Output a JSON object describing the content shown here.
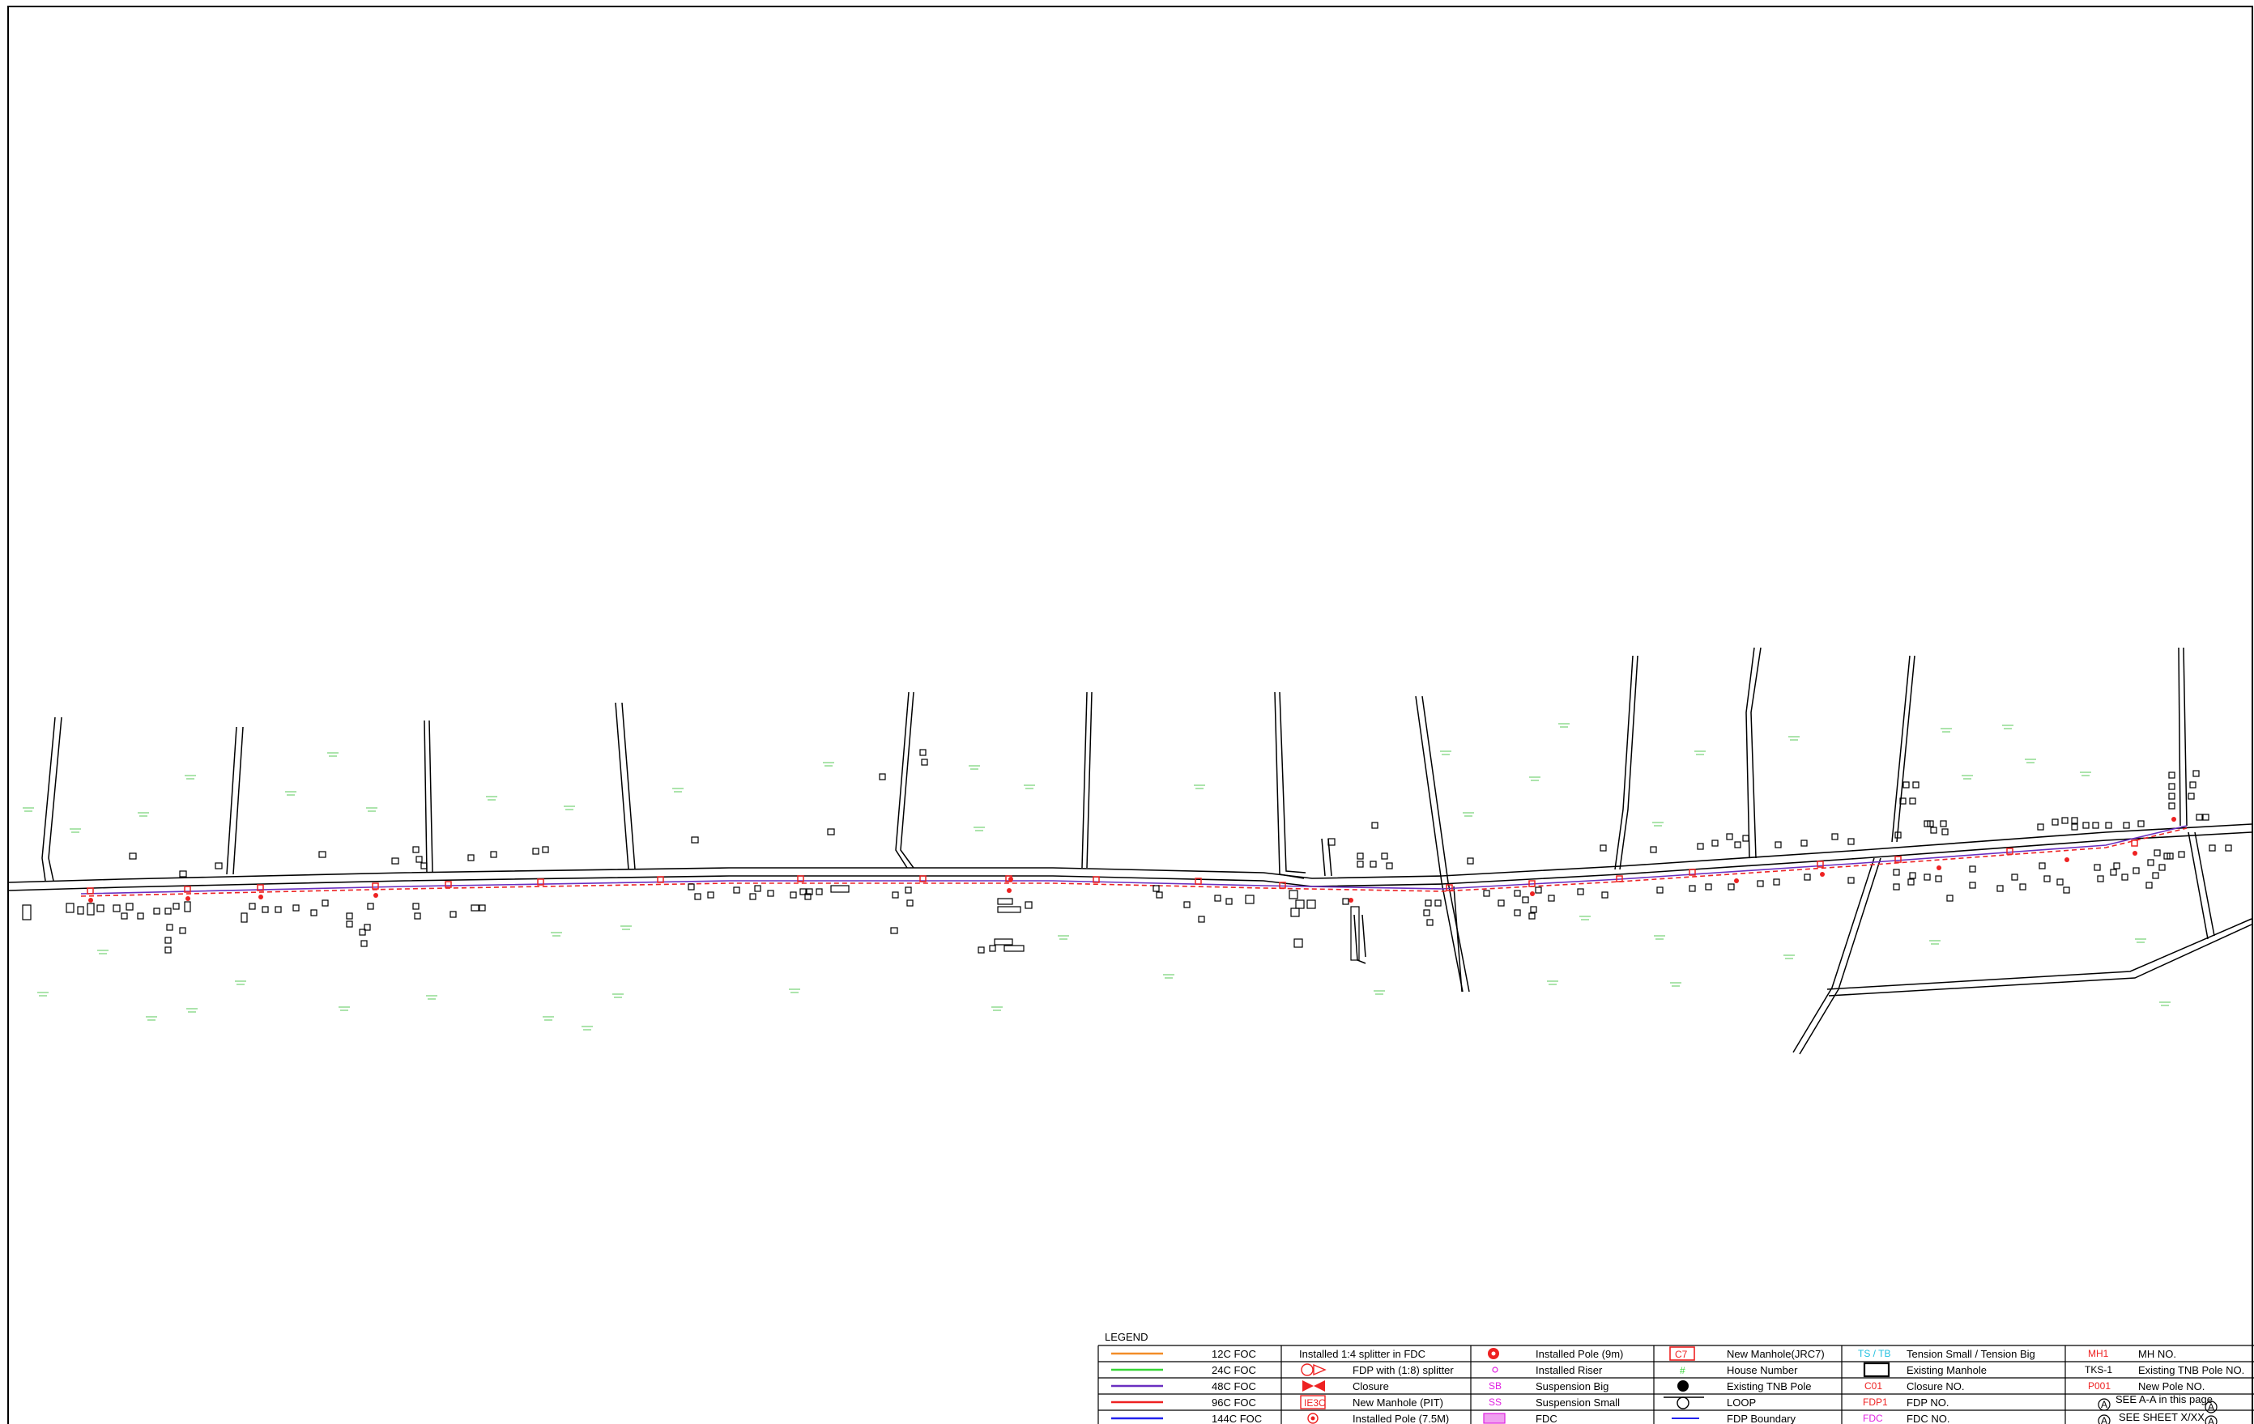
{
  "legend": {
    "title": "LEGEND",
    "col1": [
      {
        "label": "12C FOC",
        "color": "#f28c28"
      },
      {
        "label": "24C FOC",
        "color": "#36d636"
      },
      {
        "label": "48C FOC",
        "color": "#6a2fc0"
      },
      {
        "label": "96C FOC",
        "color": "#ee2222"
      },
      {
        "label": "144C FOC",
        "color": "#2222ee"
      }
    ],
    "col2": [
      {
        "label": "Installed 1:4 splitter in FDC",
        "icon": "splitter-1-4-icon"
      },
      {
        "label": "FDP with (1:8) splitter",
        "icon": "fdp-splitter-icon"
      },
      {
        "label": "Closure",
        "icon": "closure-icon"
      },
      {
        "label": "New Manhole (PIT)",
        "icon": "manhole-pit-icon",
        "code": "IE3C"
      },
      {
        "label": "Installed Pole (7.5M)",
        "icon": "pole-7-5m-icon"
      }
    ],
    "col3": [
      {
        "label": "Installed Pole (9m)",
        "icon": "pole-9m-icon"
      },
      {
        "label": "Installed Riser",
        "icon": "riser-icon"
      },
      {
        "label": "Suspension Big",
        "icon": "suspension-big-icon",
        "code": "SB"
      },
      {
        "label": "Suspension Small",
        "icon": "suspension-small-icon",
        "code": "SS"
      },
      {
        "label": "FDC",
        "icon": "fdc-icon"
      }
    ],
    "col4": [
      {
        "label": "New Manhole(JRC7)",
        "icon": "manhole-jrc7-icon",
        "code": "C7"
      },
      {
        "label": "House Number",
        "icon": "house-number-icon",
        "code": "#"
      },
      {
        "label": "Existing TNB Pole",
        "icon": "tnb-pole-icon"
      },
      {
        "label": "LOOP",
        "icon": "loop-icon"
      },
      {
        "label": "FDP Boundary",
        "icon": "fdp-boundary-icon"
      }
    ],
    "col5": [
      {
        "label": "Tension Small / Tension Big",
        "code": "TS / TB",
        "color": "#20c0e0"
      },
      {
        "label": "Existing Manhole",
        "icon": "existing-manhole-icon"
      },
      {
        "label": "Closure NO.",
        "code": "C01",
        "color": "#ee2222"
      },
      {
        "label": "FDP NO.",
        "code": "FDP1",
        "color": "#ee2222"
      },
      {
        "label": "FDC NO.",
        "code": "FDC",
        "color": "#e020e0"
      }
    ],
    "col6": [
      {
        "label": "MH NO.",
        "code": "MH1",
        "color": "#ee2222"
      },
      {
        "label": "Existing TNB Pole NO.",
        "code": "TKS-1",
        "color": "#000000"
      },
      {
        "label": "New Pole NO.",
        "code": "P001",
        "color": "#ee2222"
      },
      {
        "label": "SEE A-A in this page",
        "code": "A"
      },
      {
        "label": "SEE SHEET X/XX",
        "code": "A"
      }
    ]
  }
}
